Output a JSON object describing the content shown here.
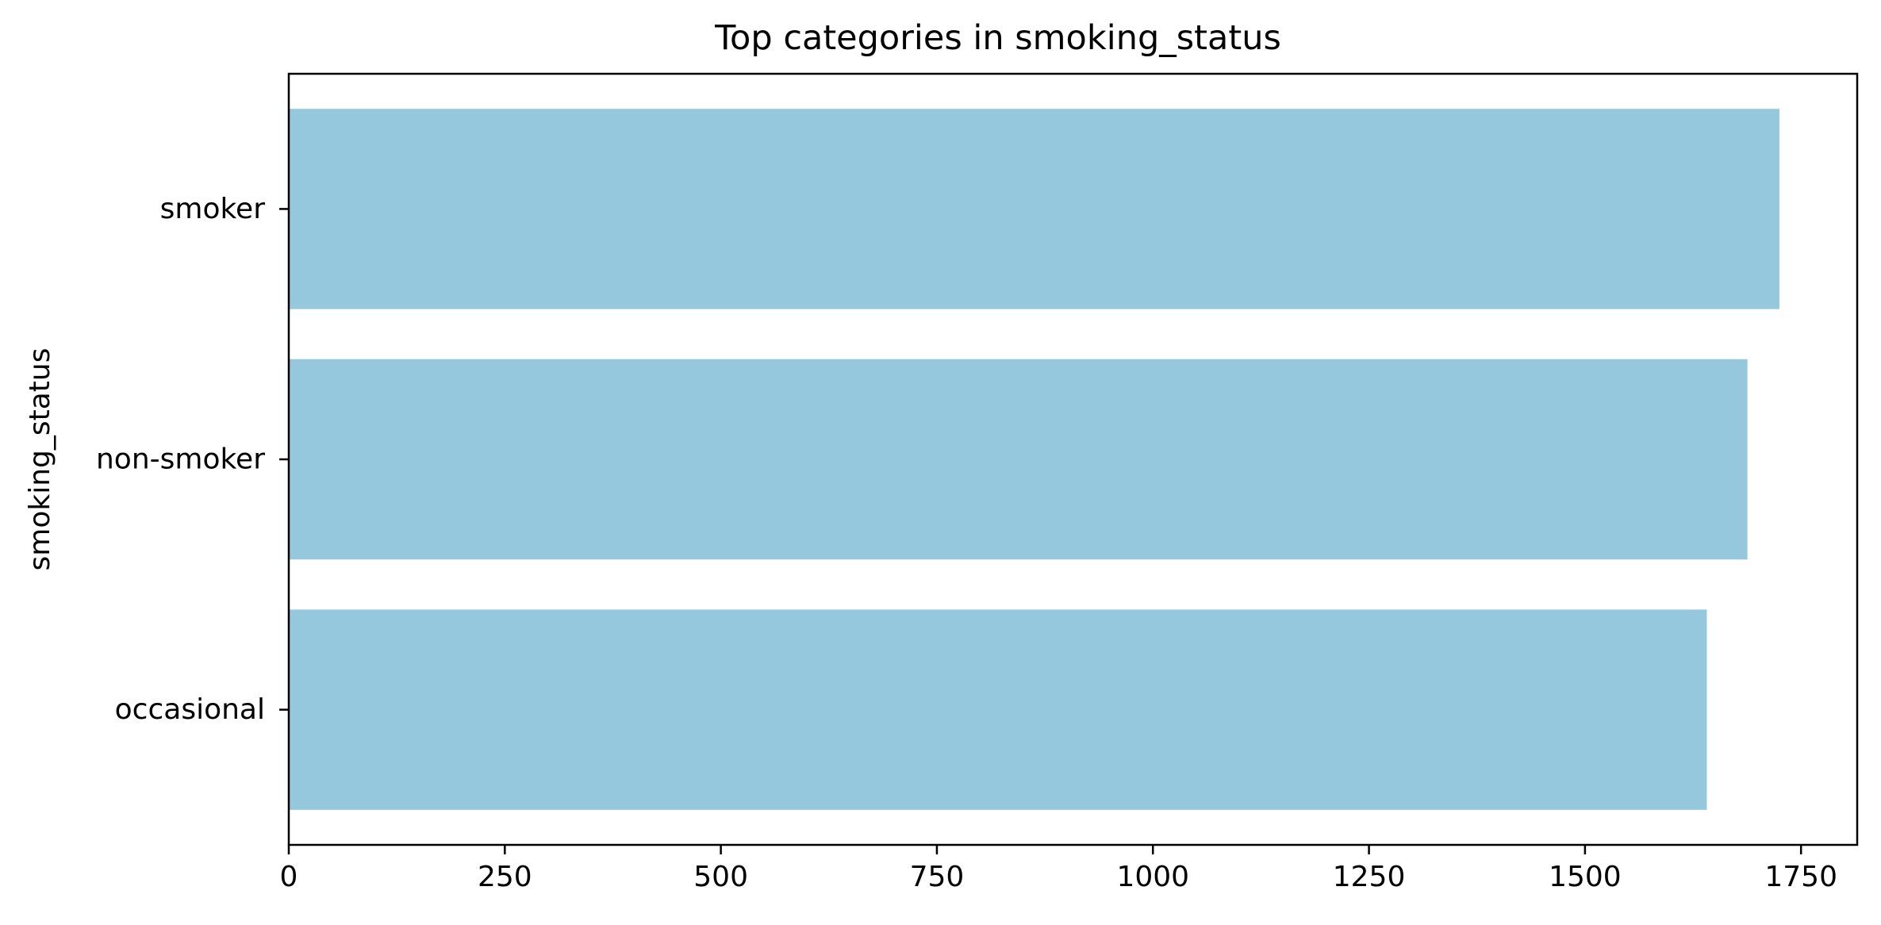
{
  "chart_data": {
    "type": "bar",
    "orientation": "horizontal",
    "title": "Top categories in smoking_status",
    "xlabel": "",
    "ylabel": "smoking_status",
    "categories": [
      "smoker",
      "non-smoker",
      "occasional"
    ],
    "values": [
      1725,
      1688,
      1641
    ],
    "xlim": [
      0,
      1815
    ],
    "xticks": [
      0,
      250,
      500,
      750,
      1000,
      1250,
      1500,
      1750
    ],
    "grid": false,
    "bar_color": "#96c8dd",
    "axis_color": "#000000"
  }
}
